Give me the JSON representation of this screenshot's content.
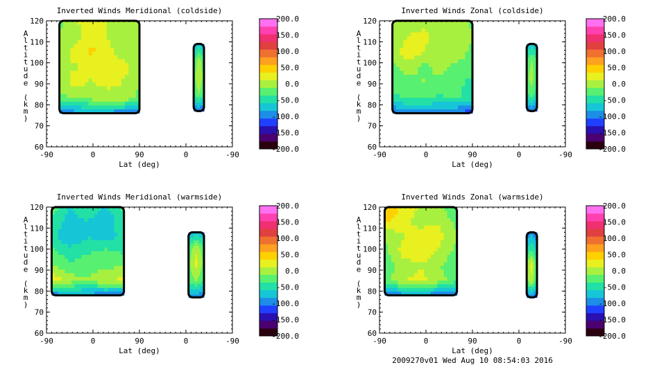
{
  "colorbar_scale": {
    "tick_labels": [
      "200.0",
      "150.0",
      "100.0",
      "50.0",
      "0.0",
      "-50.0",
      "-100.0",
      "-150.0",
      "-200.0"
    ],
    "range": [
      -200,
      200
    ],
    "colors": [
      "#2a0010",
      "#4b0070",
      "#2a10b0",
      "#2040ff",
      "#1c8ee8",
      "#16c6d6",
      "#22e0a6",
      "#58f070",
      "#a8f040",
      "#e8f020",
      "#ffd000",
      "#ffa020",
      "#f07030",
      "#e04040",
      "#f03070",
      "#ff40b0",
      "#ff70f0"
    ]
  },
  "footer": {
    "stamp": "2009270v01 Wed Aug 10 08:54:03 2016"
  },
  "chart_data": [
    {
      "type": "heatmap",
      "title": "Inverted Winds Meridional (coldside)",
      "xlabel": "Lat (deg)",
      "ylabel": "Altitude (km)",
      "x_ticks": [
        "-90",
        "0",
        "90",
        "0",
        "-90"
      ],
      "y_ticks": [
        "60",
        "70",
        "80",
        "90",
        "100",
        "110",
        "120"
      ],
      "ylim": [
        60,
        120
      ],
      "regions": [
        {
          "lat": [
            -65,
            90
          ],
          "alt": [
            76,
            120
          ],
          "values": [
            [
              -20,
              10,
              20,
              10,
              0,
              -10
            ],
            [
              -10,
              0,
              30,
              10,
              -10,
              0
            ],
            [
              0,
              20,
              40,
              20,
              0,
              10
            ],
            [
              10,
              10,
              20,
              30,
              20,
              0
            ],
            [
              0,
              20,
              10,
              20,
              10,
              -10
            ],
            [
              -20,
              -10,
              0,
              0,
              10,
              -20
            ],
            [
              -110,
              -90,
              -90,
              -90,
              -100,
              -110
            ]
          ]
        },
        {
          "lat": [
            -15,
            -35
          ],
          "alt": [
            77,
            109
          ],
          "values": [
            [
              -80,
              -70,
              -80
            ],
            [
              -40,
              0,
              -30
            ],
            [
              -20,
              10,
              -20
            ],
            [
              -40,
              -10,
              -40
            ],
            [
              -110,
              -100,
              -120
            ]
          ]
        }
      ]
    },
    {
      "type": "heatmap",
      "title": "Inverted Winds Zonal (coldside)",
      "xlabel": "Lat (deg)",
      "ylabel": "Altitude (km)",
      "x_ticks": [
        "-90",
        "0",
        "90",
        "0",
        "-90"
      ],
      "y_ticks": [
        "60",
        "70",
        "80",
        "90",
        "100",
        "110",
        "120"
      ],
      "ylim": [
        60,
        120
      ],
      "regions": [
        {
          "lat": [
            -65,
            90
          ],
          "alt": [
            76,
            120
          ],
          "values": [
            [
              0,
              10,
              0,
              -10,
              10,
              -20
            ],
            [
              -10,
              10,
              20,
              0,
              0,
              -10
            ],
            [
              0,
              30,
              10,
              -10,
              10,
              -20
            ],
            [
              -20,
              0,
              -20,
              0,
              -20,
              -30
            ],
            [
              -30,
              -20,
              -10,
              -20,
              -30,
              -40
            ],
            [
              -40,
              -30,
              -30,
              -40,
              -30,
              -50
            ],
            [
              -110,
              -100,
              -100,
              -100,
              -110,
              -120
            ]
          ]
        },
        {
          "lat": [
            -15,
            -35
          ],
          "alt": [
            77,
            109
          ],
          "values": [
            [
              -80,
              -70,
              -80
            ],
            [
              -30,
              -10,
              -30
            ],
            [
              -20,
              0,
              -40
            ],
            [
              -40,
              -20,
              -50
            ],
            [
              -110,
              -100,
              -120
            ]
          ]
        }
      ]
    },
    {
      "type": "heatmap",
      "title": "Inverted Winds Meridional (warmside)",
      "xlabel": "Lat (deg)",
      "ylabel": "Altitude (km)",
      "x_ticks": [
        "-90",
        "0",
        "90",
        "0",
        "-90"
      ],
      "y_ticks": [
        "60",
        "70",
        "80",
        "90",
        "100",
        "110",
        "120"
      ],
      "ylim": [
        60,
        120
      ],
      "regions": [
        {
          "lat": [
            -80,
            60
          ],
          "alt": [
            78,
            120
          ],
          "values": [
            [
              -20,
              -60,
              -40,
              -60,
              -30
            ],
            [
              -40,
              -70,
              -60,
              -80,
              -40
            ],
            [
              -50,
              -80,
              -60,
              -70,
              -50
            ],
            [
              -30,
              -50,
              -40,
              -30,
              -40
            ],
            [
              -10,
              -30,
              -20,
              -20,
              -10
            ],
            [
              30,
              0,
              -10,
              10,
              20
            ],
            [
              -100,
              -90,
              -90,
              -100,
              -110
            ]
          ]
        },
        {
          "lat": [
            -5,
            -35
          ],
          "alt": [
            77,
            108
          ],
          "values": [
            [
              -90,
              -70,
              -90
            ],
            [
              -30,
              10,
              -30
            ],
            [
              -20,
              20,
              -20
            ],
            [
              -30,
              -10,
              -40
            ],
            [
              -100,
              -100,
              -110
            ]
          ]
        }
      ]
    },
    {
      "type": "heatmap",
      "title": "Inverted Winds Zonal (warmside)",
      "xlabel": "Lat (deg)",
      "ylabel": "Altitude (km)",
      "x_ticks": [
        "-90",
        "0",
        "90",
        "0",
        "-90"
      ],
      "y_ticks": [
        "60",
        "70",
        "80",
        "90",
        "100",
        "110",
        "120"
      ],
      "ylim": [
        60,
        120
      ],
      "regions": [
        {
          "lat": [
            -80,
            60
          ],
          "alt": [
            78,
            120
          ],
          "values": [
            [
              60,
              30,
              10,
              -10,
              -30
            ],
            [
              40,
              20,
              0,
              10,
              -20
            ],
            [
              -10,
              10,
              30,
              20,
              -10
            ],
            [
              -20,
              20,
              30,
              10,
              -20
            ],
            [
              -30,
              0,
              10,
              -10,
              -30
            ],
            [
              -20,
              10,
              20,
              0,
              -30
            ],
            [
              -120,
              -90,
              -90,
              -100,
              -110
            ]
          ]
        },
        {
          "lat": [
            -15,
            -35
          ],
          "alt": [
            77,
            108
          ],
          "values": [
            [
              -100,
              -90,
              -110
            ],
            [
              -60,
              -40,
              -70
            ],
            [
              0,
              20,
              -40
            ],
            [
              -20,
              10,
              -50
            ],
            [
              -110,
              -100,
              -120
            ]
          ]
        }
      ]
    }
  ]
}
